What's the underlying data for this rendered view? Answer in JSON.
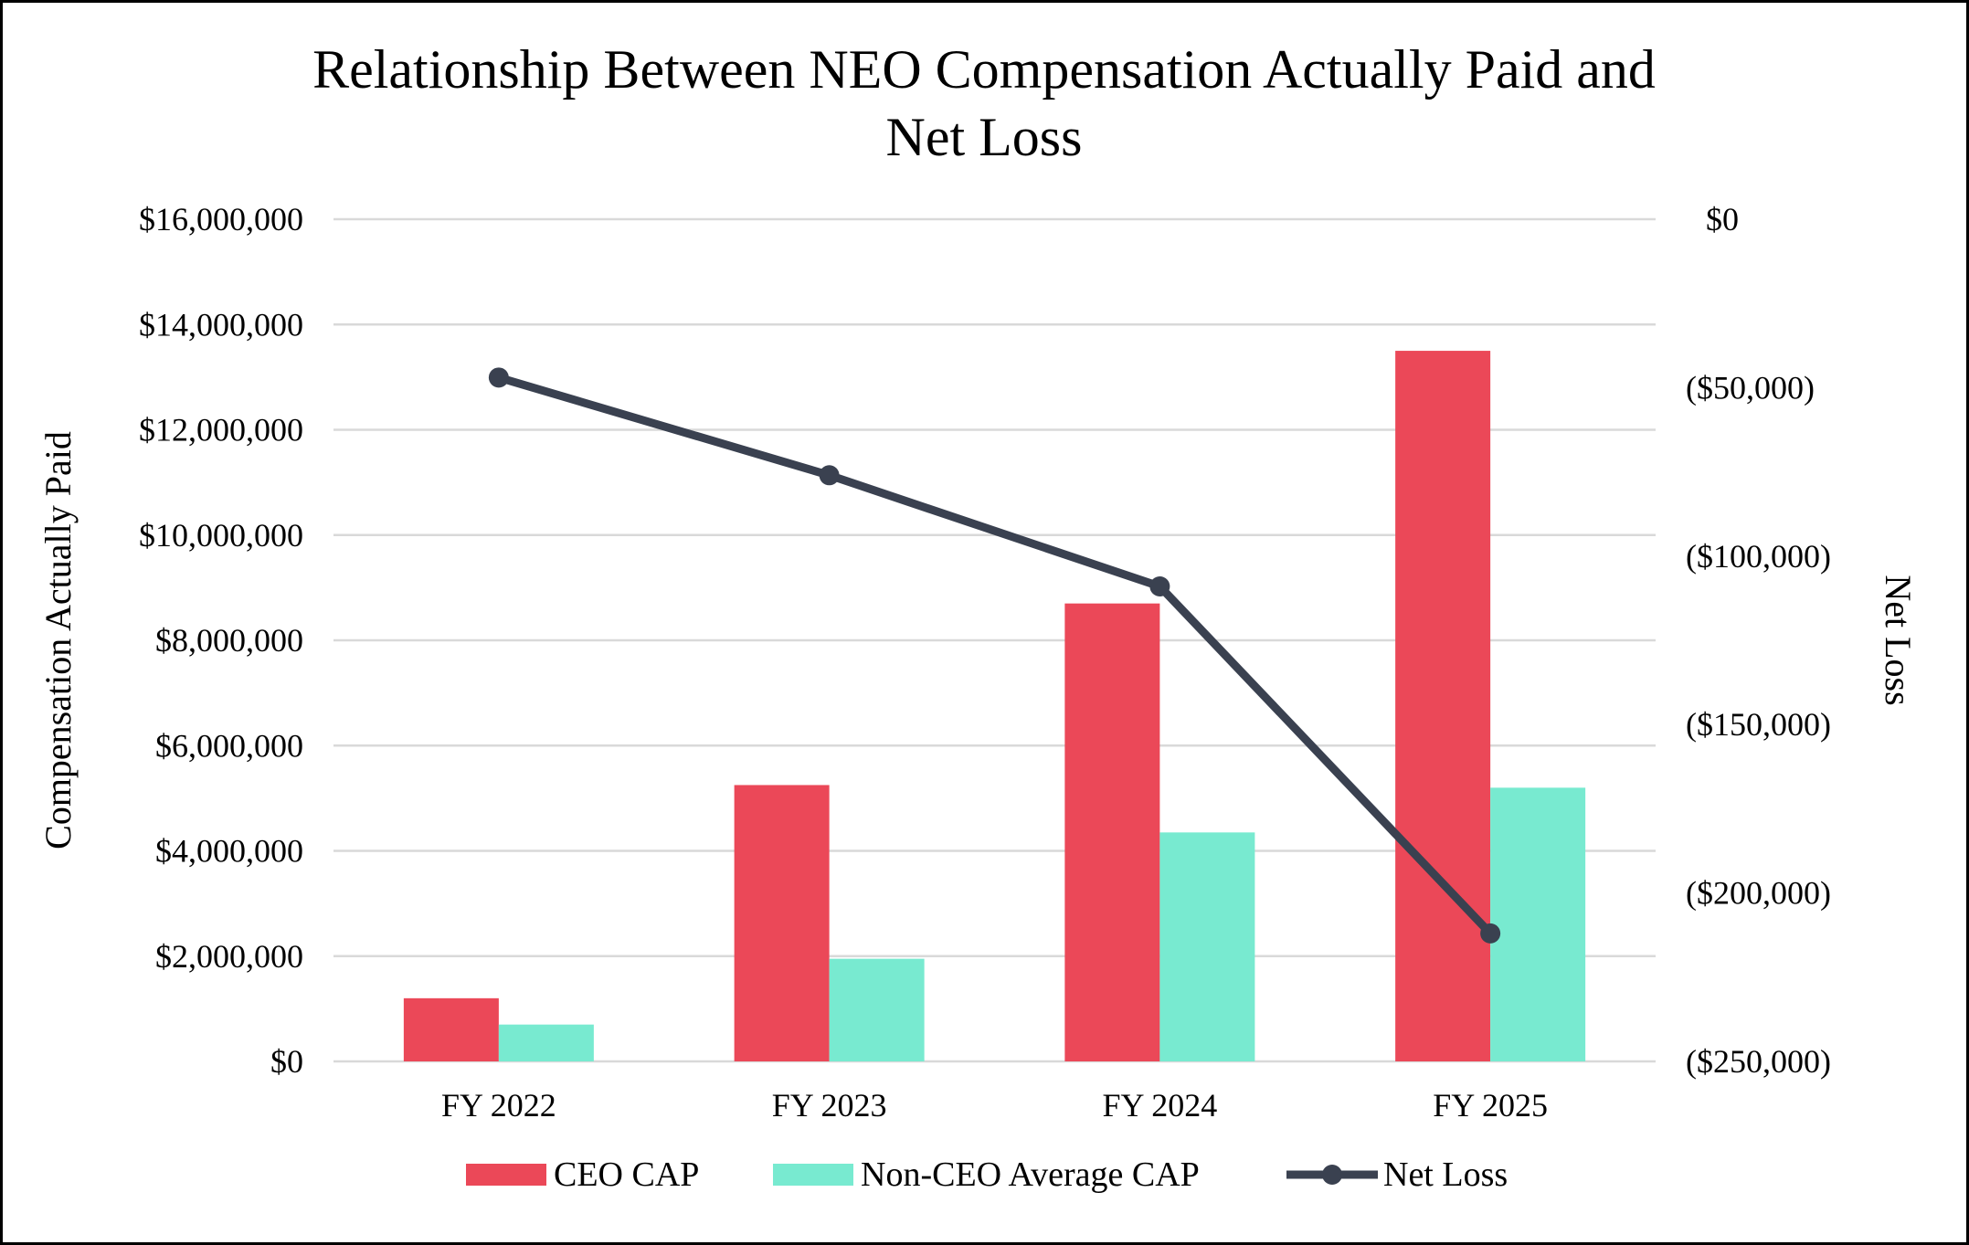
{
  "chart_data": {
    "type": "bar",
    "title_lines": [
      "Relationship Between NEO Compensation Actually Paid and",
      "Net Loss"
    ],
    "categories": [
      "FY 2022",
      "FY 2023",
      "FY 2024",
      "FY 2025"
    ],
    "series": [
      {
        "name": "CEO CAP",
        "kind": "bar",
        "axis": "left",
        "color": "#eb4858",
        "values": [
          1200000,
          5250000,
          8700000,
          13500000
        ]
      },
      {
        "name": "Non-CEO Average CAP",
        "kind": "bar",
        "axis": "left",
        "color": "#78ead0",
        "values": [
          700000,
          1950000,
          4350000,
          5200000
        ]
      },
      {
        "name": "Net Loss",
        "kind": "line",
        "axis": "right",
        "color": "#3a4150",
        "values": [
          -47000,
          -76000,
          -109000,
          -212000
        ]
      }
    ],
    "ylabel": "Compensation Actually Paid",
    "y2label": "Net Loss",
    "ylim": [
      0,
      16000000
    ],
    "y2lim": [
      -250000,
      0
    ],
    "y_ticks": [
      0,
      2000000,
      4000000,
      6000000,
      8000000,
      10000000,
      12000000,
      14000000,
      16000000
    ],
    "y_tick_labels": [
      "$0",
      "$2,000,000",
      "$4,000,000",
      "$6,000,000",
      "$8,000,000",
      "$10,000,000",
      "$12,000,000",
      "$14,000,000",
      "$16,000,000"
    ],
    "y2_ticks": [
      0,
      -50000,
      -100000,
      -150000,
      -200000,
      -250000
    ],
    "y2_tick_labels": [
      "$0",
      "($50,000)",
      "($100,000)",
      "($150,000)",
      "($200,000)",
      "($250,000)"
    ],
    "grid": true,
    "legend_position": "bottom"
  }
}
